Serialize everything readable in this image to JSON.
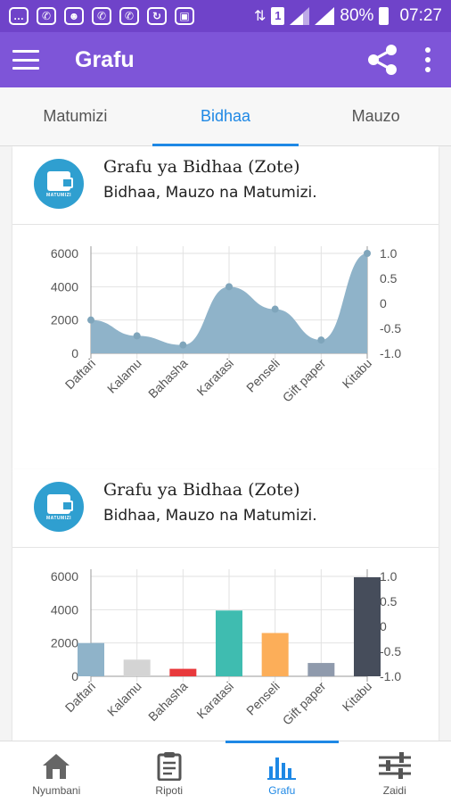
{
  "status_bar": {
    "notifications": [
      "chat-icon",
      "whatsapp-icon",
      "spy-icon",
      "whatsapp-icon",
      "whatsapp-icon",
      "sync-icon",
      "image-icon"
    ],
    "sim": "1",
    "battery": "80%",
    "time": "07:27"
  },
  "appbar": {
    "title": "Grafu"
  },
  "tabs": [
    {
      "label": "Matumizi",
      "active": false
    },
    {
      "label": "Bidhaa",
      "active": true
    },
    {
      "label": "Mauzo",
      "active": false
    }
  ],
  "cards": [
    {
      "title": "Grafu ya Bidhaa (Zote)",
      "subtitle": "Bidhaa, Mauzo na Matumizi.",
      "logo_text": "MATUMIZI"
    },
    {
      "title": "Grafu ya Bidhaa (Zote)",
      "subtitle": "Bidhaa, Mauzo na Matumizi.",
      "logo_text": "MATUMIZI"
    }
  ],
  "chart_data": [
    {
      "type": "area",
      "categories": [
        "Daftari",
        "Kalamu",
        "Bahasha",
        "Karatasi",
        "Penseli",
        "Gift paper",
        "Kitabu"
      ],
      "values": [
        2000,
        1050,
        500,
        4000,
        2650,
        800,
        6000
      ],
      "ylim": [
        0,
        6000
      ],
      "yticks": [
        "6000",
        "4000",
        "2000",
        "0"
      ],
      "right_ylim": [
        -1.0,
        1.0
      ],
      "right_yticks": [
        "1.0",
        "0.5",
        "0",
        "-0.5",
        "-1.0"
      ],
      "grid": true,
      "colors": {
        "fill": "#8fb3c9",
        "point": "#7fa5bb"
      }
    },
    {
      "type": "bar",
      "categories": [
        "Daftari",
        "Kalamu",
        "Bahasha",
        "Karatasi",
        "Penseli",
        "Gift paper",
        "Kitabu"
      ],
      "values": [
        2000,
        1000,
        450,
        3950,
        2600,
        800,
        5950
      ],
      "ylim": [
        0,
        6000
      ],
      "yticks": [
        "6000",
        "4000",
        "2000",
        "0"
      ],
      "right_ylim": [
        -1.0,
        1.0
      ],
      "right_yticks": [
        "1.0",
        "0.5",
        "0",
        "-0.5",
        "-1.0"
      ],
      "grid": true,
      "colors": [
        "#8fb3c9",
        "#d4d4d4",
        "#e8393c",
        "#3fbcb0",
        "#fcae59",
        "#8f9aac",
        "#464d5b"
      ]
    }
  ],
  "bottom_nav": [
    {
      "label": "Nyumbani",
      "icon": "home-icon",
      "active": false
    },
    {
      "label": "Ripoti",
      "icon": "clipboard-icon",
      "active": false
    },
    {
      "label": "Grafu",
      "icon": "bar-chart-icon",
      "active": true
    },
    {
      "label": "Zaidi",
      "icon": "sliders-icon",
      "active": false
    }
  ]
}
